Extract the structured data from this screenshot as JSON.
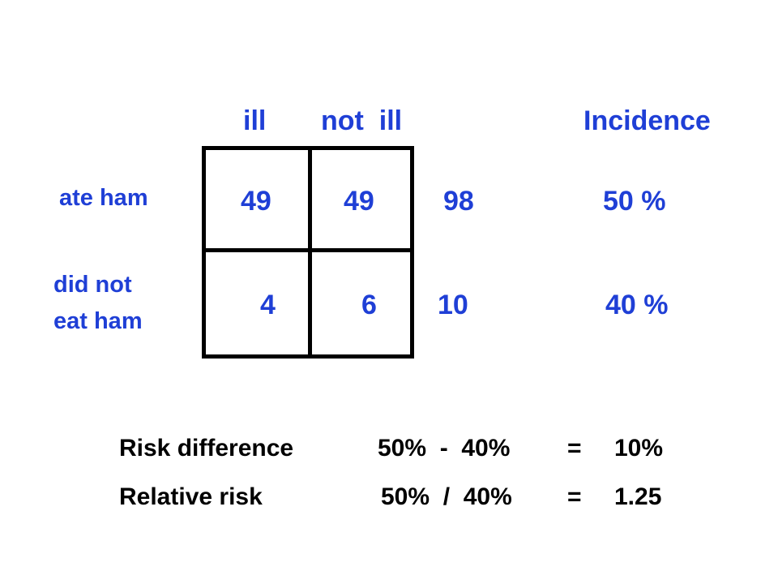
{
  "headers": {
    "ill": "ill",
    "not_ill": "not  ill",
    "incidence": "Incidence"
  },
  "rows": [
    {
      "label": "ate ham",
      "ill": "49",
      "not_ill": "49",
      "total": "98",
      "incidence": "50 %"
    },
    {
      "label_line1": "did not",
      "label_line2": "eat ham",
      "ill": "4",
      "not_ill": "6",
      "total": "10",
      "incidence": "40 %"
    }
  ],
  "measures": [
    {
      "name": "Risk difference",
      "formula": "50%  -  40%",
      "equals": "=",
      "result": "10%"
    },
    {
      "name": "Relative risk",
      "formula": "50%  /  40%",
      "equals": "=",
      "result": "1.25"
    }
  ],
  "colors": {
    "text_blue": "#1f3fd6",
    "text_black": "#000000",
    "grid_lines": "#000000",
    "background": "#ffffff"
  }
}
